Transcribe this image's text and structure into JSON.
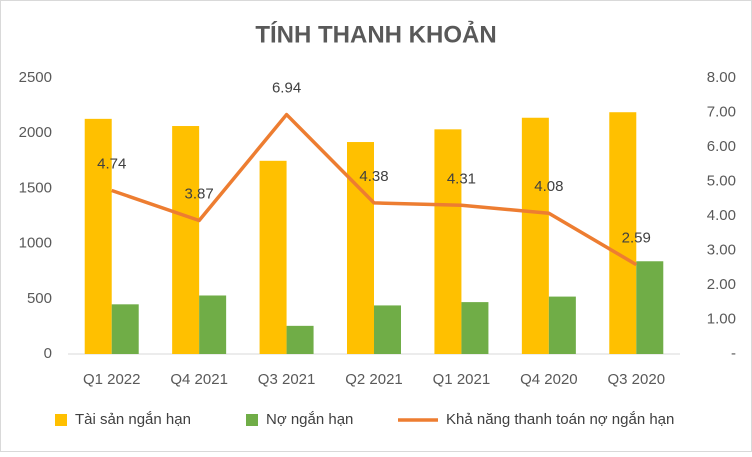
{
  "chart_data": {
    "type": "bar",
    "title": "TÍNH THANH KHOẢN",
    "categories": [
      "Q1 2022",
      "Q4 2021",
      "Q3 2021",
      "Q2 2021",
      "Q1 2021",
      "Q4 2020",
      "Q3 2020"
    ],
    "series": [
      {
        "name": "Tài sản ngắn hạn",
        "color": "#FFC000",
        "values": [
          2130,
          2065,
          1750,
          1920,
          2035,
          2140,
          2190
        ]
      },
      {
        "name": "Nợ ngắn hạn",
        "color": "#70AD47",
        "values": [
          450,
          530,
          255,
          440,
          470,
          520,
          840
        ]
      },
      {
        "name": "Khả năng thanh toán nợ ngắn hạn",
        "color": "#ED7D31",
        "type": "line",
        "axis": "y2",
        "values": [
          4.74,
          3.87,
          6.94,
          4.38,
          4.31,
          4.08,
          2.59
        ]
      }
    ],
    "ylim": [
      0,
      2500
    ],
    "yticks": [
      0,
      500,
      1000,
      1500,
      2000,
      2500
    ],
    "y2lim": [
      0,
      8
    ],
    "y2ticks": [
      {
        "value": 0,
        "label": "-"
      },
      {
        "value": 1,
        "label": "1.00"
      },
      {
        "value": 2,
        "label": "2.00"
      },
      {
        "value": 3,
        "label": "3.00"
      },
      {
        "value": 4,
        "label": "4.00"
      },
      {
        "value": 5,
        "label": "5.00"
      },
      {
        "value": 6,
        "label": "6.00"
      },
      {
        "value": 7,
        "label": "7.00"
      },
      {
        "value": 8,
        "label": "8.00"
      }
    ],
    "grid": false,
    "legend": "bottom"
  }
}
